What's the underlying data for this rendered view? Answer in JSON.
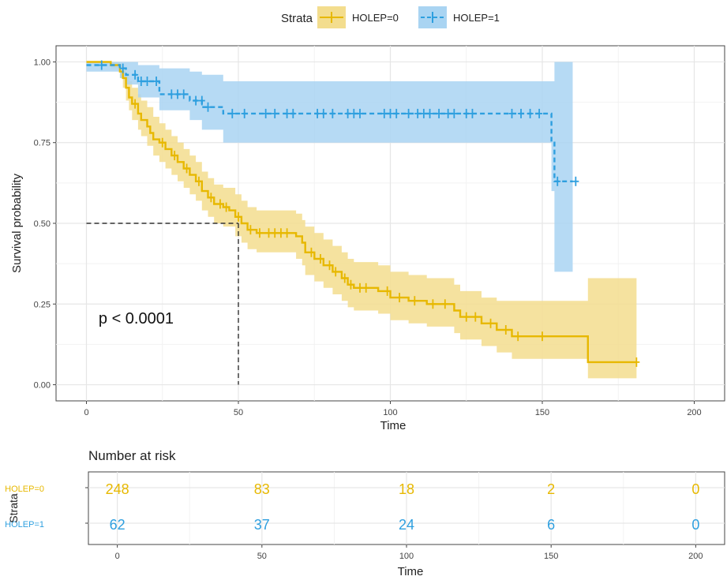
{
  "legend": {
    "title": "Strata",
    "items": [
      "HOLEP=0",
      "HOLEP=1"
    ]
  },
  "colors": {
    "holep0": "#E7B800",
    "holep0_band": "#F3DD8E",
    "holep1": "#2E9FDF",
    "holep1_band": "#A9D4F2",
    "grid": "#E6E6E6",
    "axis": "#333333"
  },
  "chart_data": [
    {
      "type": "line",
      "subtype": "kaplan-meier",
      "xlabel": "Time",
      "ylabel": "Survival probability",
      "xlim": [
        -10,
        210
      ],
      "ylim": [
        -0.05,
        1.05
      ],
      "xticks": [
        0,
        50,
        100,
        150,
        200
      ],
      "yticks": [
        0.0,
        0.25,
        0.5,
        0.75,
        1.0
      ],
      "ytick_labels": [
        "0.00",
        "0.25",
        "0.50",
        "0.75",
        "1.00"
      ],
      "grid": true,
      "legend_position": "top",
      "annotation": "p < 0.0001",
      "annotation_pos": {
        "x": 4,
        "y": 0.19
      },
      "median_line": {
        "x": 50,
        "y": 0.5
      },
      "series": [
        {
          "name": "HOLEP=0",
          "steps": [
            [
              0,
              1.0
            ],
            [
              8,
              0.99
            ],
            [
              11,
              0.97
            ],
            [
              12,
              0.95
            ],
            [
              13,
              0.92
            ],
            [
              14,
              0.89
            ],
            [
              15,
              0.87
            ],
            [
              17,
              0.84
            ],
            [
              18,
              0.82
            ],
            [
              20,
              0.8
            ],
            [
              21,
              0.78
            ],
            [
              22,
              0.76
            ],
            [
              24,
              0.75
            ],
            [
              26,
              0.73
            ],
            [
              28,
              0.71
            ],
            [
              30,
              0.69
            ],
            [
              32,
              0.67
            ],
            [
              34,
              0.65
            ],
            [
              36,
              0.63
            ],
            [
              38,
              0.6
            ],
            [
              40,
              0.58
            ],
            [
              42,
              0.56
            ],
            [
              45,
              0.55
            ],
            [
              47,
              0.54
            ],
            [
              49,
              0.52
            ],
            [
              51,
              0.5
            ],
            [
              53,
              0.48
            ],
            [
              56,
              0.47
            ],
            [
              69,
              0.46
            ],
            [
              71,
              0.44
            ],
            [
              72,
              0.41
            ],
            [
              75,
              0.39
            ],
            [
              78,
              0.37
            ],
            [
              81,
              0.35
            ],
            [
              84,
              0.33
            ],
            [
              86,
              0.31
            ],
            [
              88,
              0.3
            ],
            [
              96,
              0.29
            ],
            [
              100,
              0.27
            ],
            [
              106,
              0.26
            ],
            [
              112,
              0.25
            ],
            [
              121,
              0.23
            ],
            [
              123,
              0.21
            ],
            [
              130,
              0.19
            ],
            [
              135,
              0.17
            ],
            [
              140,
              0.15
            ],
            [
              165,
              0.07
            ],
            [
              181,
              0.07
            ]
          ],
          "upper": [
            [
              0,
              1.0
            ],
            [
              8,
              1.0
            ],
            [
              11,
              0.99
            ],
            [
              12,
              0.98
            ],
            [
              13,
              0.96
            ],
            [
              14,
              0.94
            ],
            [
              15,
              0.92
            ],
            [
              17,
              0.9
            ],
            [
              18,
              0.88
            ],
            [
              20,
              0.86
            ],
            [
              22,
              0.83
            ],
            [
              24,
              0.81
            ],
            [
              26,
              0.79
            ],
            [
              28,
              0.77
            ],
            [
              30,
              0.75
            ],
            [
              32,
              0.73
            ],
            [
              34,
              0.71
            ],
            [
              36,
              0.69
            ],
            [
              38,
              0.66
            ],
            [
              40,
              0.64
            ],
            [
              42,
              0.62
            ],
            [
              45,
              0.61
            ],
            [
              49,
              0.59
            ],
            [
              51,
              0.57
            ],
            [
              53,
              0.55
            ],
            [
              56,
              0.54
            ],
            [
              69,
              0.53
            ],
            [
              71,
              0.51
            ],
            [
              72,
              0.49
            ],
            [
              75,
              0.47
            ],
            [
              78,
              0.45
            ],
            [
              81,
              0.43
            ],
            [
              84,
              0.41
            ],
            [
              86,
              0.39
            ],
            [
              88,
              0.38
            ],
            [
              96,
              0.37
            ],
            [
              100,
              0.35
            ],
            [
              106,
              0.34
            ],
            [
              112,
              0.33
            ],
            [
              121,
              0.31
            ],
            [
              123,
              0.29
            ],
            [
              130,
              0.27
            ],
            [
              135,
              0.26
            ],
            [
              140,
              0.26
            ],
            [
              165,
              0.33
            ],
            [
              181,
              0.33
            ]
          ],
          "lower": [
            [
              0,
              1.0
            ],
            [
              8,
              0.98
            ],
            [
              11,
              0.95
            ],
            [
              12,
              0.92
            ],
            [
              13,
              0.88
            ],
            [
              14,
              0.85
            ],
            [
              15,
              0.82
            ],
            [
              17,
              0.79
            ],
            [
              18,
              0.77
            ],
            [
              20,
              0.74
            ],
            [
              22,
              0.71
            ],
            [
              24,
              0.69
            ],
            [
              26,
              0.67
            ],
            [
              28,
              0.65
            ],
            [
              30,
              0.63
            ],
            [
              32,
              0.61
            ],
            [
              34,
              0.59
            ],
            [
              36,
              0.57
            ],
            [
              38,
              0.54
            ],
            [
              40,
              0.52
            ],
            [
              42,
              0.5
            ],
            [
              45,
              0.49
            ],
            [
              49,
              0.46
            ],
            [
              51,
              0.44
            ],
            [
              53,
              0.42
            ],
            [
              56,
              0.41
            ],
            [
              69,
              0.39
            ],
            [
              71,
              0.37
            ],
            [
              72,
              0.34
            ],
            [
              75,
              0.32
            ],
            [
              78,
              0.3
            ],
            [
              81,
              0.28
            ],
            [
              84,
              0.26
            ],
            [
              86,
              0.24
            ],
            [
              88,
              0.23
            ],
            [
              96,
              0.22
            ],
            [
              100,
              0.2
            ],
            [
              106,
              0.19
            ],
            [
              112,
              0.18
            ],
            [
              121,
              0.16
            ],
            [
              123,
              0.14
            ],
            [
              130,
              0.12
            ],
            [
              135,
              0.1
            ],
            [
              140,
              0.08
            ],
            [
              165,
              0.02
            ],
            [
              181,
              0.02
            ]
          ],
          "censor": [
            [
              16,
              0.87
            ],
            [
              25,
              0.75
            ],
            [
              29,
              0.71
            ],
            [
              33,
              0.67
            ],
            [
              37,
              0.63
            ],
            [
              41,
              0.58
            ],
            [
              44,
              0.56
            ],
            [
              46,
              0.55
            ],
            [
              50,
              0.52
            ],
            [
              54,
              0.48
            ],
            [
              57,
              0.47
            ],
            [
              60,
              0.47
            ],
            [
              62,
              0.47
            ],
            [
              64,
              0.47
            ],
            [
              66,
              0.47
            ],
            [
              74,
              0.41
            ],
            [
              77,
              0.39
            ],
            [
              80,
              0.37
            ],
            [
              82,
              0.35
            ],
            [
              85,
              0.33
            ],
            [
              87,
              0.31
            ],
            [
              90,
              0.3
            ],
            [
              92,
              0.3
            ],
            [
              99,
              0.29
            ],
            [
              103,
              0.27
            ],
            [
              108,
              0.26
            ],
            [
              114,
              0.25
            ],
            [
              118,
              0.25
            ],
            [
              125,
              0.21
            ],
            [
              128,
              0.21
            ],
            [
              133,
              0.19
            ],
            [
              138,
              0.17
            ],
            [
              142,
              0.15
            ],
            [
              150,
              0.15
            ],
            [
              181,
              0.07
            ]
          ]
        },
        {
          "name": "HOLEP=1",
          "steps": [
            [
              0,
              0.99
            ],
            [
              11,
              0.98
            ],
            [
              13,
              0.96
            ],
            [
              17,
              0.94
            ],
            [
              24,
              0.9
            ],
            [
              34,
              0.88
            ],
            [
              38,
              0.86
            ],
            [
              45,
              0.84
            ],
            [
              153,
              0.75
            ],
            [
              154,
              0.63
            ],
            [
              160,
              0.63
            ]
          ],
          "upper": [
            [
              0,
              1.0
            ],
            [
              13,
              1.0
            ],
            [
              17,
              0.99
            ],
            [
              24,
              0.98
            ],
            [
              34,
              0.97
            ],
            [
              38,
              0.96
            ],
            [
              45,
              0.94
            ],
            [
              153,
              0.94
            ],
            [
              154,
              1.0
            ],
            [
              160,
              1.0
            ]
          ],
          "lower": [
            [
              0,
              0.97
            ],
            [
              11,
              0.95
            ],
            [
              13,
              0.93
            ],
            [
              17,
              0.89
            ],
            [
              24,
              0.85
            ],
            [
              34,
              0.82
            ],
            [
              38,
              0.79
            ],
            [
              45,
              0.75
            ],
            [
              153,
              0.6
            ],
            [
              154,
              0.35
            ],
            [
              160,
              0.35
            ]
          ],
          "censor": [
            [
              5,
              0.99
            ],
            [
              12,
              0.98
            ],
            [
              16,
              0.96
            ],
            [
              18,
              0.94
            ],
            [
              20,
              0.94
            ],
            [
              23,
              0.94
            ],
            [
              28,
              0.9
            ],
            [
              30,
              0.9
            ],
            [
              32,
              0.9
            ],
            [
              36,
              0.88
            ],
            [
              38,
              0.88
            ],
            [
              40,
              0.86
            ],
            [
              48,
              0.84
            ],
            [
              52,
              0.84
            ],
            [
              59,
              0.84
            ],
            [
              62,
              0.84
            ],
            [
              66,
              0.84
            ],
            [
              68,
              0.84
            ],
            [
              76,
              0.84
            ],
            [
              78,
              0.84
            ],
            [
              81,
              0.84
            ],
            [
              86,
              0.84
            ],
            [
              88,
              0.84
            ],
            [
              90,
              0.84
            ],
            [
              98,
              0.84
            ],
            [
              100,
              0.84
            ],
            [
              102,
              0.84
            ],
            [
              106,
              0.84
            ],
            [
              109,
              0.84
            ],
            [
              111,
              0.84
            ],
            [
              113,
              0.84
            ],
            [
              116,
              0.84
            ],
            [
              119,
              0.84
            ],
            [
              121,
              0.84
            ],
            [
              125,
              0.84
            ],
            [
              127,
              0.84
            ],
            [
              140,
              0.84
            ],
            [
              143,
              0.84
            ],
            [
              146,
              0.84
            ],
            [
              149,
              0.84
            ],
            [
              155,
              0.63
            ],
            [
              161,
              0.63
            ]
          ]
        }
      ]
    },
    {
      "type": "table",
      "title": "Number at risk",
      "xlabel": "Time",
      "ylabel": "Strata",
      "xlim": [
        -10,
        210
      ],
      "xticks": [
        0,
        50,
        100,
        150,
        200
      ],
      "times": [
        0,
        50,
        100,
        150,
        200
      ],
      "rows": [
        {
          "name": "HOLEP=0",
          "values": [
            248,
            83,
            18,
            2,
            0
          ]
        },
        {
          "name": "HOLEP=1",
          "values": [
            62,
            37,
            24,
            6,
            0
          ]
        }
      ]
    }
  ]
}
